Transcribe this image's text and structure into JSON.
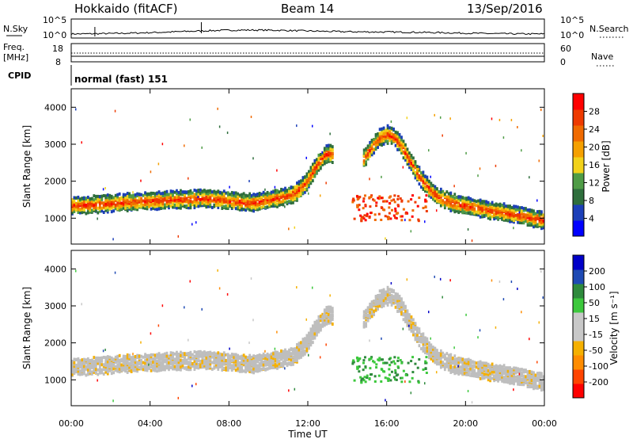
{
  "header": {
    "station": "Hokkaido (fitACF)",
    "beam": "Beam 14",
    "date": "13/Sep/2016"
  },
  "strips": {
    "nsky_label": "N.Sky",
    "nsky_ticks": [
      "10^5",
      "10^0"
    ],
    "nsky_right_ticks": [
      "10^5",
      "10^0"
    ],
    "nsearch_label": "N.Search",
    "freq_label_line1": "Freq.",
    "freq_label_line2": "[MHz]",
    "freq_ticks": [
      "18",
      "8"
    ],
    "nave_ticks": [
      "60",
      "0"
    ],
    "nave_label": "Nave",
    "cpid_label": "CPID",
    "cpid_text": "normal (fast) 151"
  },
  "colors": {
    "power_scale": [
      "#0000ff",
      "#1c3fb8",
      "#2e6e3c",
      "#4f9c46",
      "#f2d21a",
      "#f5a000",
      "#f06a00",
      "#ee3a00",
      "#ff0000"
    ],
    "velocity_scale": [
      "#ff0000",
      "#ff4400",
      "#ff8c00",
      "#f5b000",
      "#c8c8c8",
      "#c8c8c8",
      "#3cc83c",
      "#2e8a3c",
      "#1e4ab4",
      "#0000c8"
    ],
    "ground_scatter": "#bebebe"
  },
  "chart_data": [
    {
      "type": "heatmap",
      "name": "power",
      "ylabel": "Slant Range [km]",
      "yticks": [
        "4000",
        "3000",
        "2000",
        "1000"
      ],
      "ylim": [
        300,
        4500
      ],
      "colorbar_label": "Power [dB]",
      "colorbar_ticks": [
        "28",
        "24",
        "20",
        "16",
        "12",
        "8",
        "4"
      ],
      "colorbar_range": [
        0,
        32
      ]
    },
    {
      "type": "heatmap",
      "name": "velocity",
      "ylabel": "Slant Range [km]",
      "yticks": [
        "4000",
        "3000",
        "2000",
        "1000"
      ],
      "ylim": [
        300,
        4500
      ],
      "colorbar_label": "Velocity [m s⁻¹]",
      "colorbar_ticks": [
        "200",
        "100",
        "50",
        "15",
        "-15",
        "-50",
        "-100",
        "-200"
      ],
      "colorbar_range": [
        -250,
        250
      ]
    }
  ],
  "xaxis": {
    "ticks": [
      "00:00",
      "04:00",
      "08:00",
      "12:00",
      "16:00",
      "20:00",
      "00:00"
    ],
    "xlabel": "Time UT",
    "xlim": [
      0,
      24
    ]
  }
}
